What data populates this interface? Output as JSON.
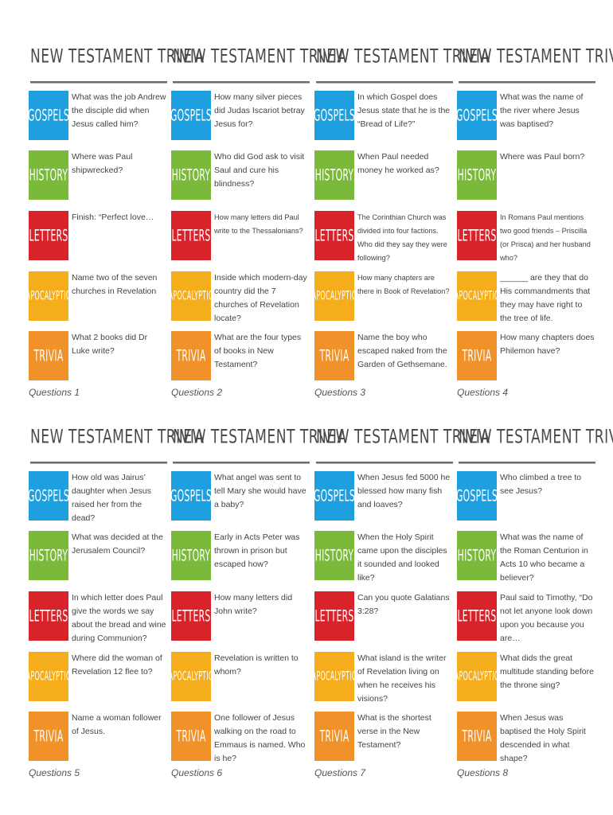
{
  "cards": [
    {
      "title": "NEW TESTAMENT TRIVIA",
      "footer": "Questions 1",
      "questions": [
        {
          "category": "GOSPELS",
          "color": "#1e9fe0",
          "text": "What was the job Andrew the disciple did when Jesus called him?"
        },
        {
          "category": "HISTORY",
          "color": "#7ab93a",
          "text": "Where was Paul shipwrecked?"
        },
        {
          "category": "LETTERS",
          "color": "#d9232b",
          "text": "Finish: “Perfect love…"
        },
        {
          "category": "APOCALYPTIC",
          "color": "#f5ad1c",
          "text": "Name two of the seven churches in Revelation"
        },
        {
          "category": "TRIVIA",
          "color": "#f0912a",
          "text": "What 2 books did Dr Luke write?"
        }
      ]
    },
    {
      "title": "NEW TESTAMENT TRIVIA",
      "footer": "Questions 2",
      "questions": [
        {
          "category": "GOSPELS",
          "color": "#1e9fe0",
          "text": "How many silver pieces did Judas Iscariot betray Jesus for?"
        },
        {
          "category": "HISTORY",
          "color": "#7ab93a",
          "text": "Who did God ask to visit Saul and cure his blindness?"
        },
        {
          "category": "LETTERS",
          "color": "#d9232b",
          "text": "How many letters did Paul write to the Thessalonians?"
        },
        {
          "category": "APOCALYPTIC",
          "color": "#f5ad1c",
          "text": "Inside which modern-day country did the 7 churches of Revelation locate?"
        },
        {
          "category": "TRIVIA",
          "color": "#f0912a",
          "text": "What are the four types of books in New Testament?"
        }
      ]
    },
    {
      "title": "NEW TESTAMENT TRIVIA",
      "footer": "Questions 3",
      "questions": [
        {
          "category": "GOSPELS",
          "color": "#1e9fe0",
          "text": "In which Gospel does Jesus state that he is the “Bread of Life?”"
        },
        {
          "category": "HISTORY",
          "color": "#7ab93a",
          "text": "When Paul needed money he worked as?"
        },
        {
          "category": "LETTERS",
          "color": "#d9232b",
          "text": "The Corinthian Church was divided into four factions. Who did they say they were following?"
        },
        {
          "category": "APOCALYPTIC",
          "color": "#f5ad1c",
          "text": "How many chapters are there in Book of Revelation?"
        },
        {
          "category": "TRIVIA",
          "color": "#f0912a",
          "text": "Name the boy who escaped naked from the Garden of Gethsemane."
        }
      ]
    },
    {
      "title": "NEW TESTAMENT TRIVIA",
      "footer": "Questions 4",
      "questions": [
        {
          "category": "GOSPELS",
          "color": "#1e9fe0",
          "text": "What was the name of the river where Jesus was baptised?"
        },
        {
          "category": "HISTORY",
          "color": "#7ab93a",
          "text": "Where was Paul born?"
        },
        {
          "category": "LETTERS",
          "color": "#d9232b",
          "text": "In Romans Paul mentions two good friends – Priscilla (or Prisca) and her husband who?"
        },
        {
          "category": "APOCALYPTIC",
          "color": "#f5ad1c",
          "text": "______ are they that do His commandments that they may have right to the tree of life."
        },
        {
          "category": "TRIVIA",
          "color": "#f0912a",
          "text": "How many chapters does Philemon have?"
        }
      ]
    },
    {
      "title": "NEW TESTAMENT TRIVIA",
      "footer": "Questions 5",
      "questions": [
        {
          "category": "GOSPELS",
          "color": "#1e9fe0",
          "text": "How old was Jairus’ daughter when Jesus raised her from the dead?"
        },
        {
          "category": "HISTORY",
          "color": "#7ab93a",
          "text": "What was decided at the Jerusalem Council?"
        },
        {
          "category": "LETTERS",
          "color": "#d9232b",
          "text": "In which letter does Paul give the words we say about the bread and wine during Communion?"
        },
        {
          "category": "APOCALYPTIC",
          "color": "#f5ad1c",
          "text": "Where did the woman of Revelation 12 flee to?"
        },
        {
          "category": "TRIVIA",
          "color": "#f0912a",
          "text": "Name a woman follower of Jesus."
        }
      ]
    },
    {
      "title": "NEW TESTAMENT TRIVIA",
      "footer": "Questions 6",
      "questions": [
        {
          "category": "GOSPELS",
          "color": "#1e9fe0",
          "text": "What angel was sent to tell Mary she would have a baby?"
        },
        {
          "category": "HISTORY",
          "color": "#7ab93a",
          "text": "Early in Acts Peter was thrown in prison but escaped how?"
        },
        {
          "category": "LETTERS",
          "color": "#d9232b",
          "text": "How many letters did John write?"
        },
        {
          "category": "APOCALYPTIC",
          "color": "#f5ad1c",
          "text": "Revelation is written to whom?"
        },
        {
          "category": "TRIVIA",
          "color": "#f0912a",
          "text": "One follower of Jesus walking on the road to Emmaus is named. Who is he?"
        }
      ]
    },
    {
      "title": "NEW TESTAMENT TRIVIA",
      "footer": "Questions 7",
      "questions": [
        {
          "category": "GOSPELS",
          "color": "#1e9fe0",
          "text": "When Jesus fed 5000 he blessed how many fish and loaves?"
        },
        {
          "category": "HISTORY",
          "color": "#7ab93a",
          "text": "When the Holy Spirit came upon the disciples it sounded and looked like?"
        },
        {
          "category": "LETTERS",
          "color": "#d9232b",
          "text": "Can you quote Galatians 3:28?"
        },
        {
          "category": "APOCALYPTIC",
          "color": "#f5ad1c",
          "text": "What island is the writer of Revelation living on when he receives his visions?"
        },
        {
          "category": "TRIVIA",
          "color": "#f0912a",
          "text": "What is the shortest verse in the New Testament?"
        }
      ]
    },
    {
      "title": "NEW TESTAMENT TRIVIA",
      "footer": "Questions 8",
      "questions": [
        {
          "category": "GOSPELS",
          "color": "#1e9fe0",
          "text": "Who climbed a tree to see Jesus?"
        },
        {
          "category": "HISTORY",
          "color": "#7ab93a",
          "text": "What was the name of the Roman Centurion in Acts 10 who became a believer?"
        },
        {
          "category": "LETTERS",
          "color": "#d9232b",
          "text": "Paul said to Timothy, “Do not let anyone look down upon you because you are…"
        },
        {
          "category": "APOCALYPTIC",
          "color": "#f5ad1c",
          "text": "What dids the great multitude standing before the throne sing?"
        },
        {
          "category": "TRIVIA",
          "color": "#f0912a",
          "text": "When Jesus was baptised the Holy Spirit descended in what shape?"
        }
      ]
    }
  ]
}
